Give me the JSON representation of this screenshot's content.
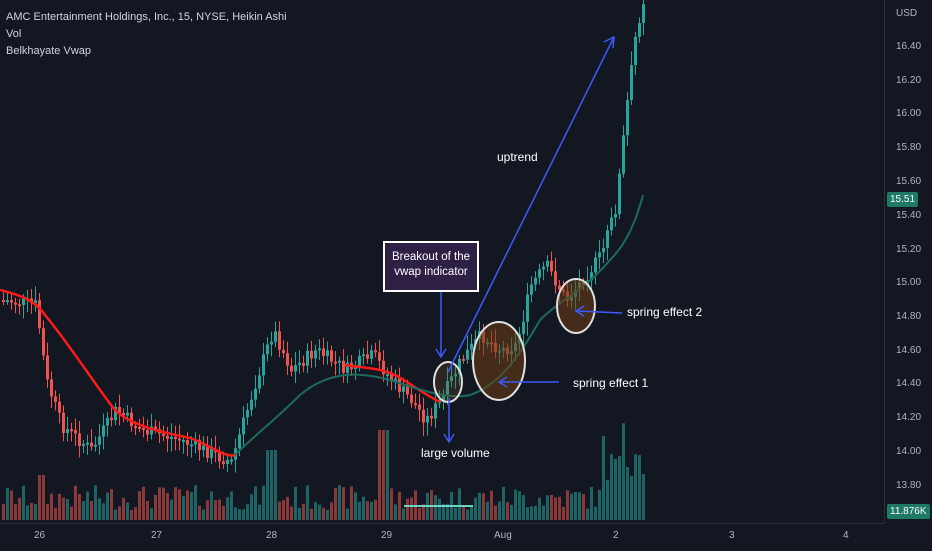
{
  "legend": {
    "symbol_line": "AMC Entertainment Holdings, Inc., 15, NYSE, Heikin Ashi",
    "indicator_1": "Vol",
    "indicator_2": "Belkhayate Vwap"
  },
  "price_axis": {
    "currency": "USD",
    "ticks": [
      "16.40",
      "16.20",
      "16.00",
      "15.80",
      "15.60",
      "15.40",
      "15.20",
      "15.00",
      "14.80",
      "14.60",
      "14.40",
      "14.20",
      "14.00",
      "13.80"
    ],
    "last_price": "15.51",
    "volume_value": "11.876K"
  },
  "time_axis": {
    "ticks": [
      "26",
      "27",
      "28",
      "29",
      "Aug",
      "2",
      "3",
      "4"
    ]
  },
  "annotations": {
    "callout_line1": "Breakout of the",
    "callout_line2": "vwap indicator",
    "uptrend": "uptrend",
    "large_volume": "large volume",
    "spring_1": "spring effect 1",
    "spring_2": "spring effect 2"
  },
  "colors": {
    "background": "#131722",
    "bull": "#26a69a",
    "bear": "#ef5350",
    "vwap_red": "#ff0000",
    "vwap_green": "#1b5e52",
    "arrow": "#2962ff",
    "last_price_badge": "#1e7a64"
  }
}
